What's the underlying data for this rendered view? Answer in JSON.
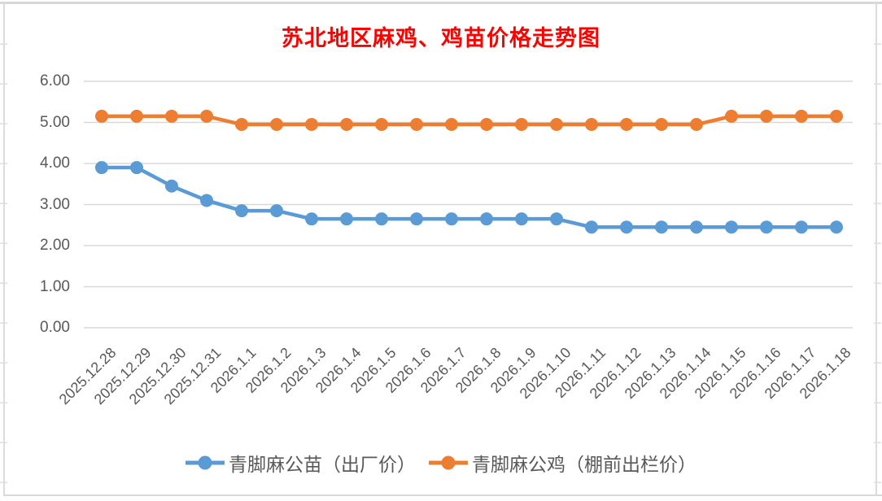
{
  "chart_data": {
    "type": "line",
    "title": "苏北地区麻鸡、鸡苗价格走势图",
    "title_color": "#FF0000",
    "categories": [
      "2025.12.28",
      "2025.12.29",
      "2025.12.30",
      "2025.12.31",
      "2026.1.1",
      "2026.1.2",
      "2026.1.3",
      "2026.1.4",
      "2026.1.5",
      "2026.1.6",
      "2026.1.7",
      "2026.1.8",
      "2026.1.9",
      "2026.1.10",
      "2026.1.11",
      "2026.1.12",
      "2026.1.13",
      "2026.1.14",
      "2026.1.15",
      "2026.1.16",
      "2026.1.17",
      "2026.1.18"
    ],
    "series": [
      {
        "name": "青脚麻公苗（出厂价）",
        "color": "#5B9BD5",
        "values": [
          3.9,
          3.9,
          3.45,
          3.1,
          2.85,
          2.85,
          2.65,
          2.65,
          2.65,
          2.65,
          2.65,
          2.65,
          2.65,
          2.65,
          2.45,
          2.45,
          2.45,
          2.45,
          2.45,
          2.45,
          2.45,
          2.45
        ]
      },
      {
        "name": "青脚麻公鸡（棚前出栏价）",
        "color": "#ED7D31",
        "values": [
          5.15,
          5.15,
          5.15,
          5.15,
          4.95,
          4.95,
          4.95,
          4.95,
          4.95,
          4.95,
          4.95,
          4.95,
          4.95,
          4.95,
          4.95,
          4.95,
          4.95,
          4.95,
          5.15,
          5.15,
          5.15,
          5.15
        ]
      }
    ],
    "ylim": [
      0,
      6
    ],
    "ytick_labels": [
      "0.00",
      "1.00",
      "2.00",
      "3.00",
      "4.00",
      "5.00",
      "6.00"
    ],
    "grid": true,
    "gridline_color": "#D9D9D9",
    "axis_label_color": "#595959",
    "legend_position": "bottom"
  }
}
